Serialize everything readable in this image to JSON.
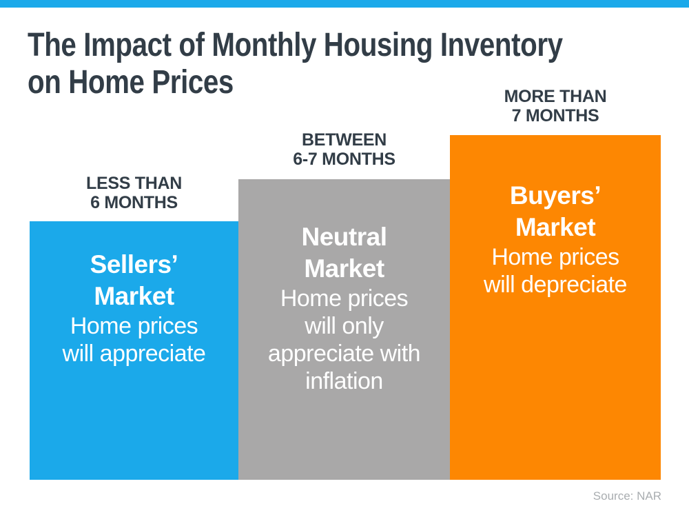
{
  "accent": {
    "top_strip_color": "#1BA9EA"
  },
  "title": {
    "line1": "The Impact of Monthly Housing Inventory",
    "line2": "on Home Prices",
    "color": "#323D47"
  },
  "bars": [
    {
      "name": "Sellers’ Market",
      "label_line1": "LESS THAN",
      "label_line2": "6 MONTHS",
      "heading_lines": [
        "Sellers’",
        "Market"
      ],
      "body_lines": [
        "Home prices",
        "will appreciate"
      ],
      "fill_color": "#1BA9EA",
      "text_color": "#FFFFFF"
    },
    {
      "name": "Neutral Market",
      "label_line1": "BETWEEN",
      "label_line2": "6-7 MONTHS",
      "heading_lines": [
        "Neutral",
        "Market"
      ],
      "body_lines": [
        "Home prices",
        "will only",
        "appreciate with",
        "inflation"
      ],
      "fill_color": "#A9A8A8",
      "text_color": "#FFFFFF"
    },
    {
      "name": "Buyers’ Market",
      "label_line1": "MORE THAN",
      "label_line2": "7 MONTHS",
      "heading_lines": [
        "Buyers’",
        "Market"
      ],
      "body_lines": [
        "Home prices",
        "will depreciate"
      ],
      "fill_color": "#FD8702",
      "text_color": "#FFFFFF"
    }
  ],
  "source": "Source: NAR",
  "chart_data": {
    "type": "bar",
    "title": "The Impact of Monthly Housing Inventory on Home Prices",
    "categories": [
      "LESS THAN 6 MONTHS",
      "BETWEEN 6-7 MONTHS",
      "MORE THAN 7 MONTHS"
    ],
    "series": [
      {
        "name": "bar_height_px (qualitative relative height)",
        "values": [
          375,
          436,
          500
        ]
      }
    ],
    "bar_annotations": [
      "Sellers’ Market — Home prices will appreciate",
      "Neutral Market — Home prices will only appreciate with inflation",
      "Buyers’ Market — Home prices will depreciate"
    ],
    "colors": [
      "#1BA9EA",
      "#A9A8A8",
      "#FD8702"
    ],
    "xlabel": "",
    "ylabel": "",
    "axes_visible": false,
    "grid": false,
    "legend_position": "none",
    "source": "Source: NAR"
  }
}
